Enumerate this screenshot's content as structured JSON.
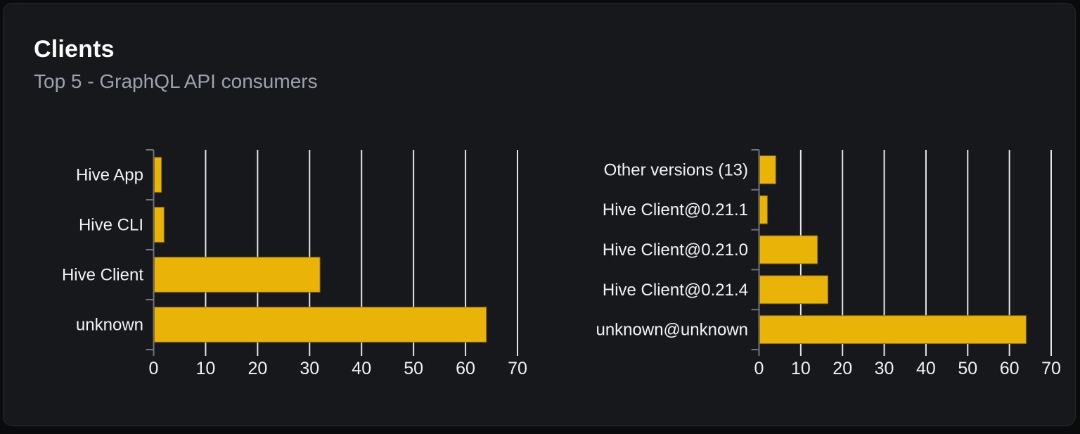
{
  "card": {
    "title": "Clients",
    "subtitle": "Top 5 - GraphQL API consumers"
  },
  "chart_data": [
    {
      "type": "bar",
      "name": "clients-top5",
      "orientation": "horizontal",
      "categories": [
        "Hive App",
        "Hive CLI",
        "Hive Client",
        "unknown"
      ],
      "values": [
        1.5,
        2,
        32,
        64
      ],
      "xticks": [
        0,
        10,
        20,
        30,
        40,
        50,
        60,
        70
      ],
      "xlim": [
        0,
        70
      ],
      "grid": true,
      "legend": false
    },
    {
      "type": "bar",
      "name": "client-versions-top5",
      "orientation": "horizontal",
      "categories": [
        "Other versions (13)",
        "Hive Client@0.21.1",
        "Hive Client@0.21.0",
        "Hive Client@0.21.4",
        "unknown@unknown"
      ],
      "values": [
        4,
        2,
        14,
        16.5,
        64
      ],
      "xticks": [
        0,
        10,
        20,
        30,
        40,
        50,
        60,
        70
      ],
      "xlim": [
        0,
        70
      ],
      "grid": true,
      "legend": false
    }
  ],
  "colors": {
    "page_bg": "#0a0b0d",
    "card_bg": "#16181c",
    "card_border": "#26292f",
    "title": "#ffffff",
    "subtitle": "#9ca3af",
    "bar": "#eab308",
    "bar_stroke": "#8f6e0a",
    "gridline": "#e4e6ea",
    "axis": "#71757c",
    "category_label": "#f3f4f6",
    "tick_label": "#f1f2f4"
  }
}
